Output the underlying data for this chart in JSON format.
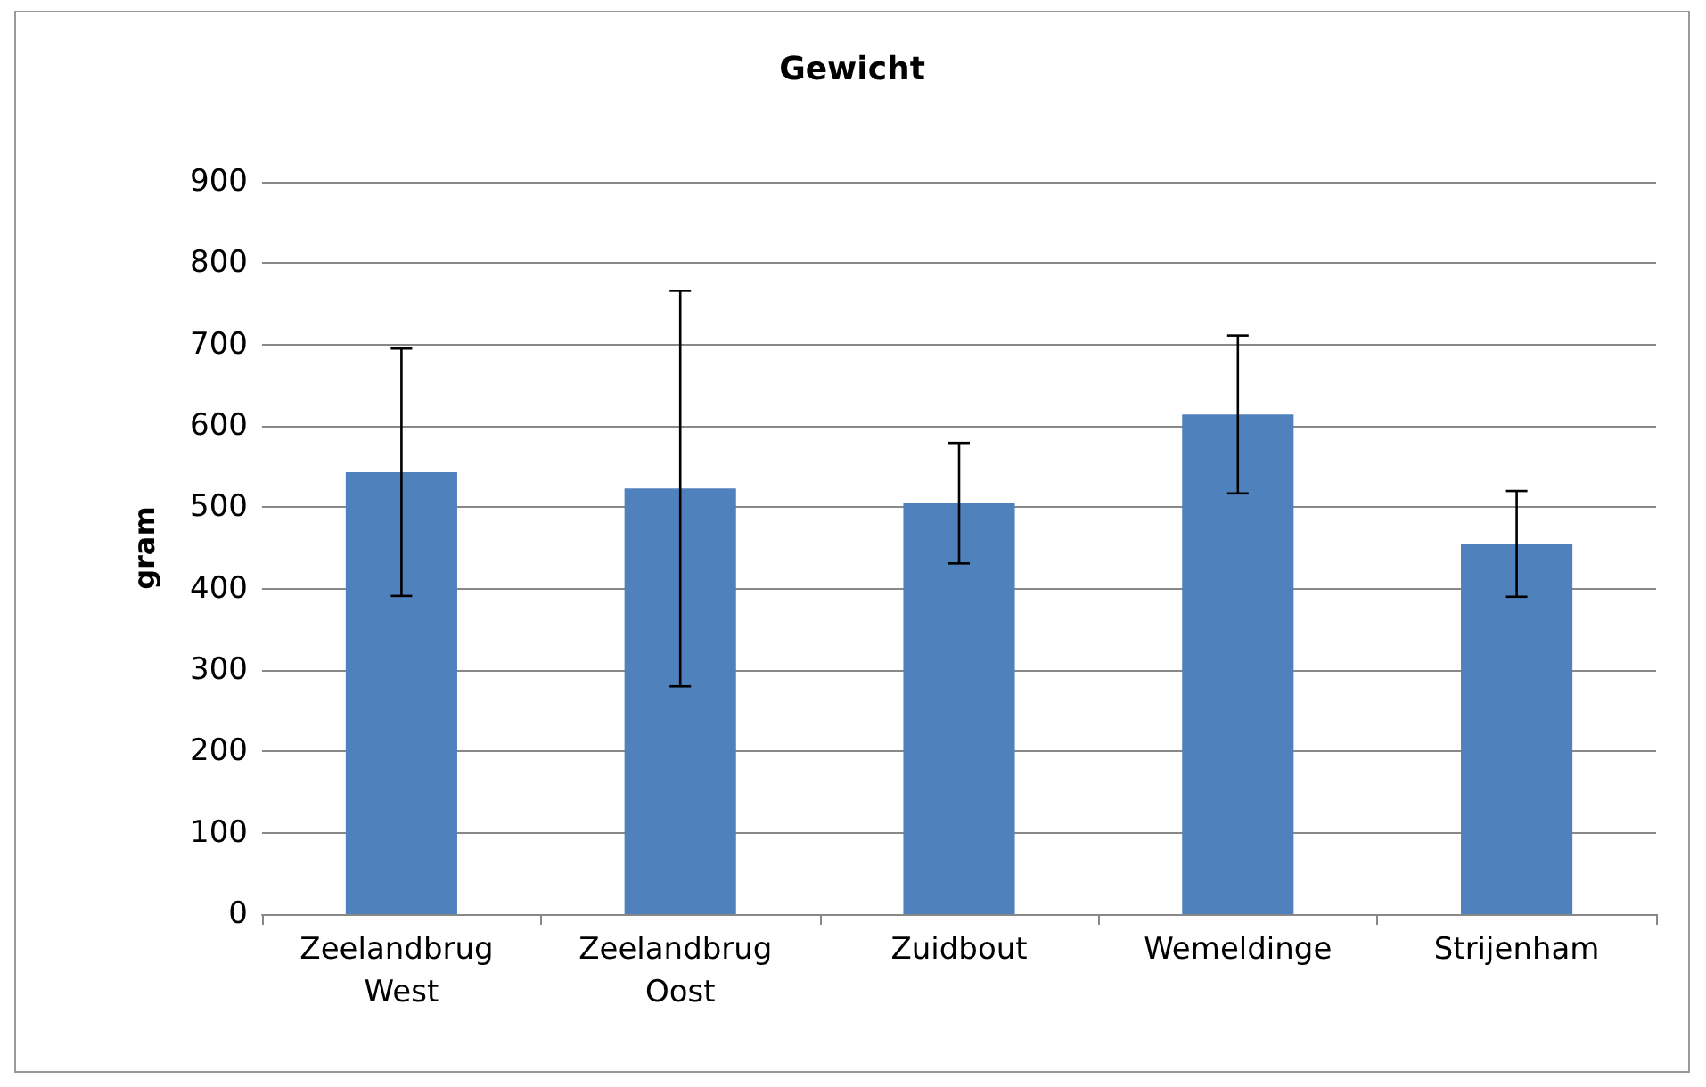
{
  "chart_data": {
    "type": "bar",
    "title": "Gewicht",
    "ylabel": "gram",
    "categories": [
      "Zeelandbrug West",
      "Zeelandbrug Oost",
      "Zuidbout",
      "Wemeldinge",
      "Strijenham"
    ],
    "values": [
      543,
      523,
      505,
      614,
      455
    ],
    "errors": [
      152,
      243,
      74,
      97,
      65
    ],
    "color": "#4f81bd",
    "ylim": [
      0,
      900
    ],
    "yticks": [
      0,
      100,
      200,
      300,
      400,
      500,
      600,
      700,
      800,
      900
    ],
    "grid": "y"
  }
}
